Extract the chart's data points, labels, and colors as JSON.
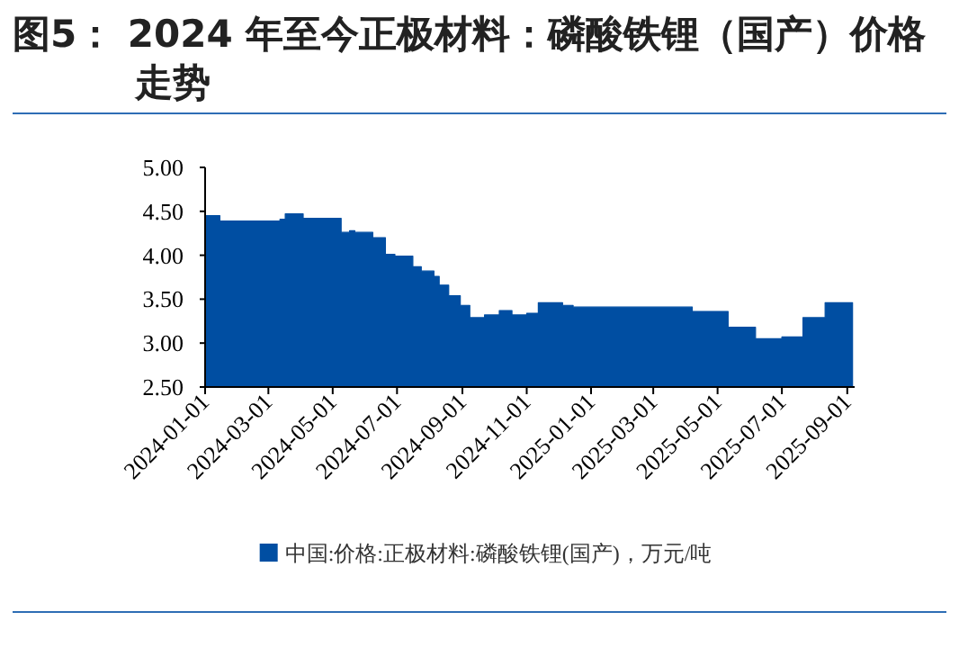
{
  "chart_data": {
    "type": "area",
    "title": "图5： 2024 年至今正极材料：磷酸铁锂（国产）价格走势",
    "x": [
      "2024-01-01",
      "2024-01-15",
      "2024-01-15",
      "2024-03-12",
      "2024-03-12",
      "2024-03-17",
      "2024-03-17",
      "2024-04-03",
      "2024-04-03",
      "2024-05-09",
      "2024-05-09",
      "2024-05-17",
      "2024-05-17",
      "2024-05-22",
      "2024-05-22",
      "2024-06-08",
      "2024-06-08",
      "2024-06-20",
      "2024-06-20",
      "2024-06-29",
      "2024-06-29",
      "2024-07-16",
      "2024-07-16",
      "2024-07-24",
      "2024-07-24",
      "2024-08-05",
      "2024-08-05",
      "2024-08-10",
      "2024-08-10",
      "2024-08-19",
      "2024-08-19",
      "2024-08-30",
      "2024-08-30",
      "2024-09-08",
      "2024-09-08",
      "2024-09-22",
      "2024-09-22",
      "2024-10-06",
      "2024-10-06",
      "2024-10-18",
      "2024-10-18",
      "2024-11-01",
      "2024-11-01",
      "2024-11-12",
      "2024-11-12",
      "2024-12-05",
      "2024-12-05",
      "2024-12-15",
      "2024-12-15",
      "2025-04-07",
      "2025-04-07",
      "2025-05-11",
      "2025-05-11",
      "2025-06-06",
      "2025-06-06",
      "2025-07-01",
      "2025-07-01",
      "2025-07-21",
      "2025-07-21",
      "2025-08-11",
      "2025-08-11",
      "2025-09-06"
    ],
    "series": [
      {
        "name": "中国:价格:正极材料:磷酸铁锂(国产)，万元/吨",
        "color": "#004ea2",
        "values": [
          4.45,
          4.45,
          4.39,
          4.39,
          4.41,
          4.41,
          4.47,
          4.47,
          4.42,
          4.42,
          4.26,
          4.26,
          4.28,
          4.28,
          4.26,
          4.26,
          4.2,
          4.2,
          4.01,
          4.01,
          3.99,
          3.99,
          3.87,
          3.87,
          3.82,
          3.82,
          3.76,
          3.76,
          3.66,
          3.66,
          3.54,
          3.54,
          3.43,
          3.43,
          3.29,
          3.29,
          3.32,
          3.32,
          3.37,
          3.37,
          3.32,
          3.32,
          3.34,
          3.34,
          3.46,
          3.46,
          3.43,
          3.43,
          3.41,
          3.41,
          3.36,
          3.36,
          3.18,
          3.18,
          3.05,
          3.05,
          3.07,
          3.07,
          3.29,
          3.29,
          3.46,
          3.46
        ]
      }
    ],
    "xlim": [
      "2024-01-01",
      "2025-09-08"
    ],
    "xticks": [
      "2024-01-01",
      "2024-03-01",
      "2024-05-01",
      "2024-07-01",
      "2024-09-01",
      "2024-11-01",
      "2025-01-01",
      "2025-03-01",
      "2025-05-01",
      "2025-07-01",
      "2025-09-01"
    ],
    "ylim": [
      2.5,
      5
    ],
    "yticks": [
      {
        "value": 2.5,
        "label": "2.50"
      },
      {
        "value": 3,
        "label": "3.00"
      },
      {
        "value": 3.5,
        "label": "3.50"
      },
      {
        "value": 4,
        "label": "4.00"
      },
      {
        "value": 4.5,
        "label": "4.50"
      },
      {
        "value": 5,
        "label": "5.00"
      }
    ],
    "legend": "bottom"
  }
}
